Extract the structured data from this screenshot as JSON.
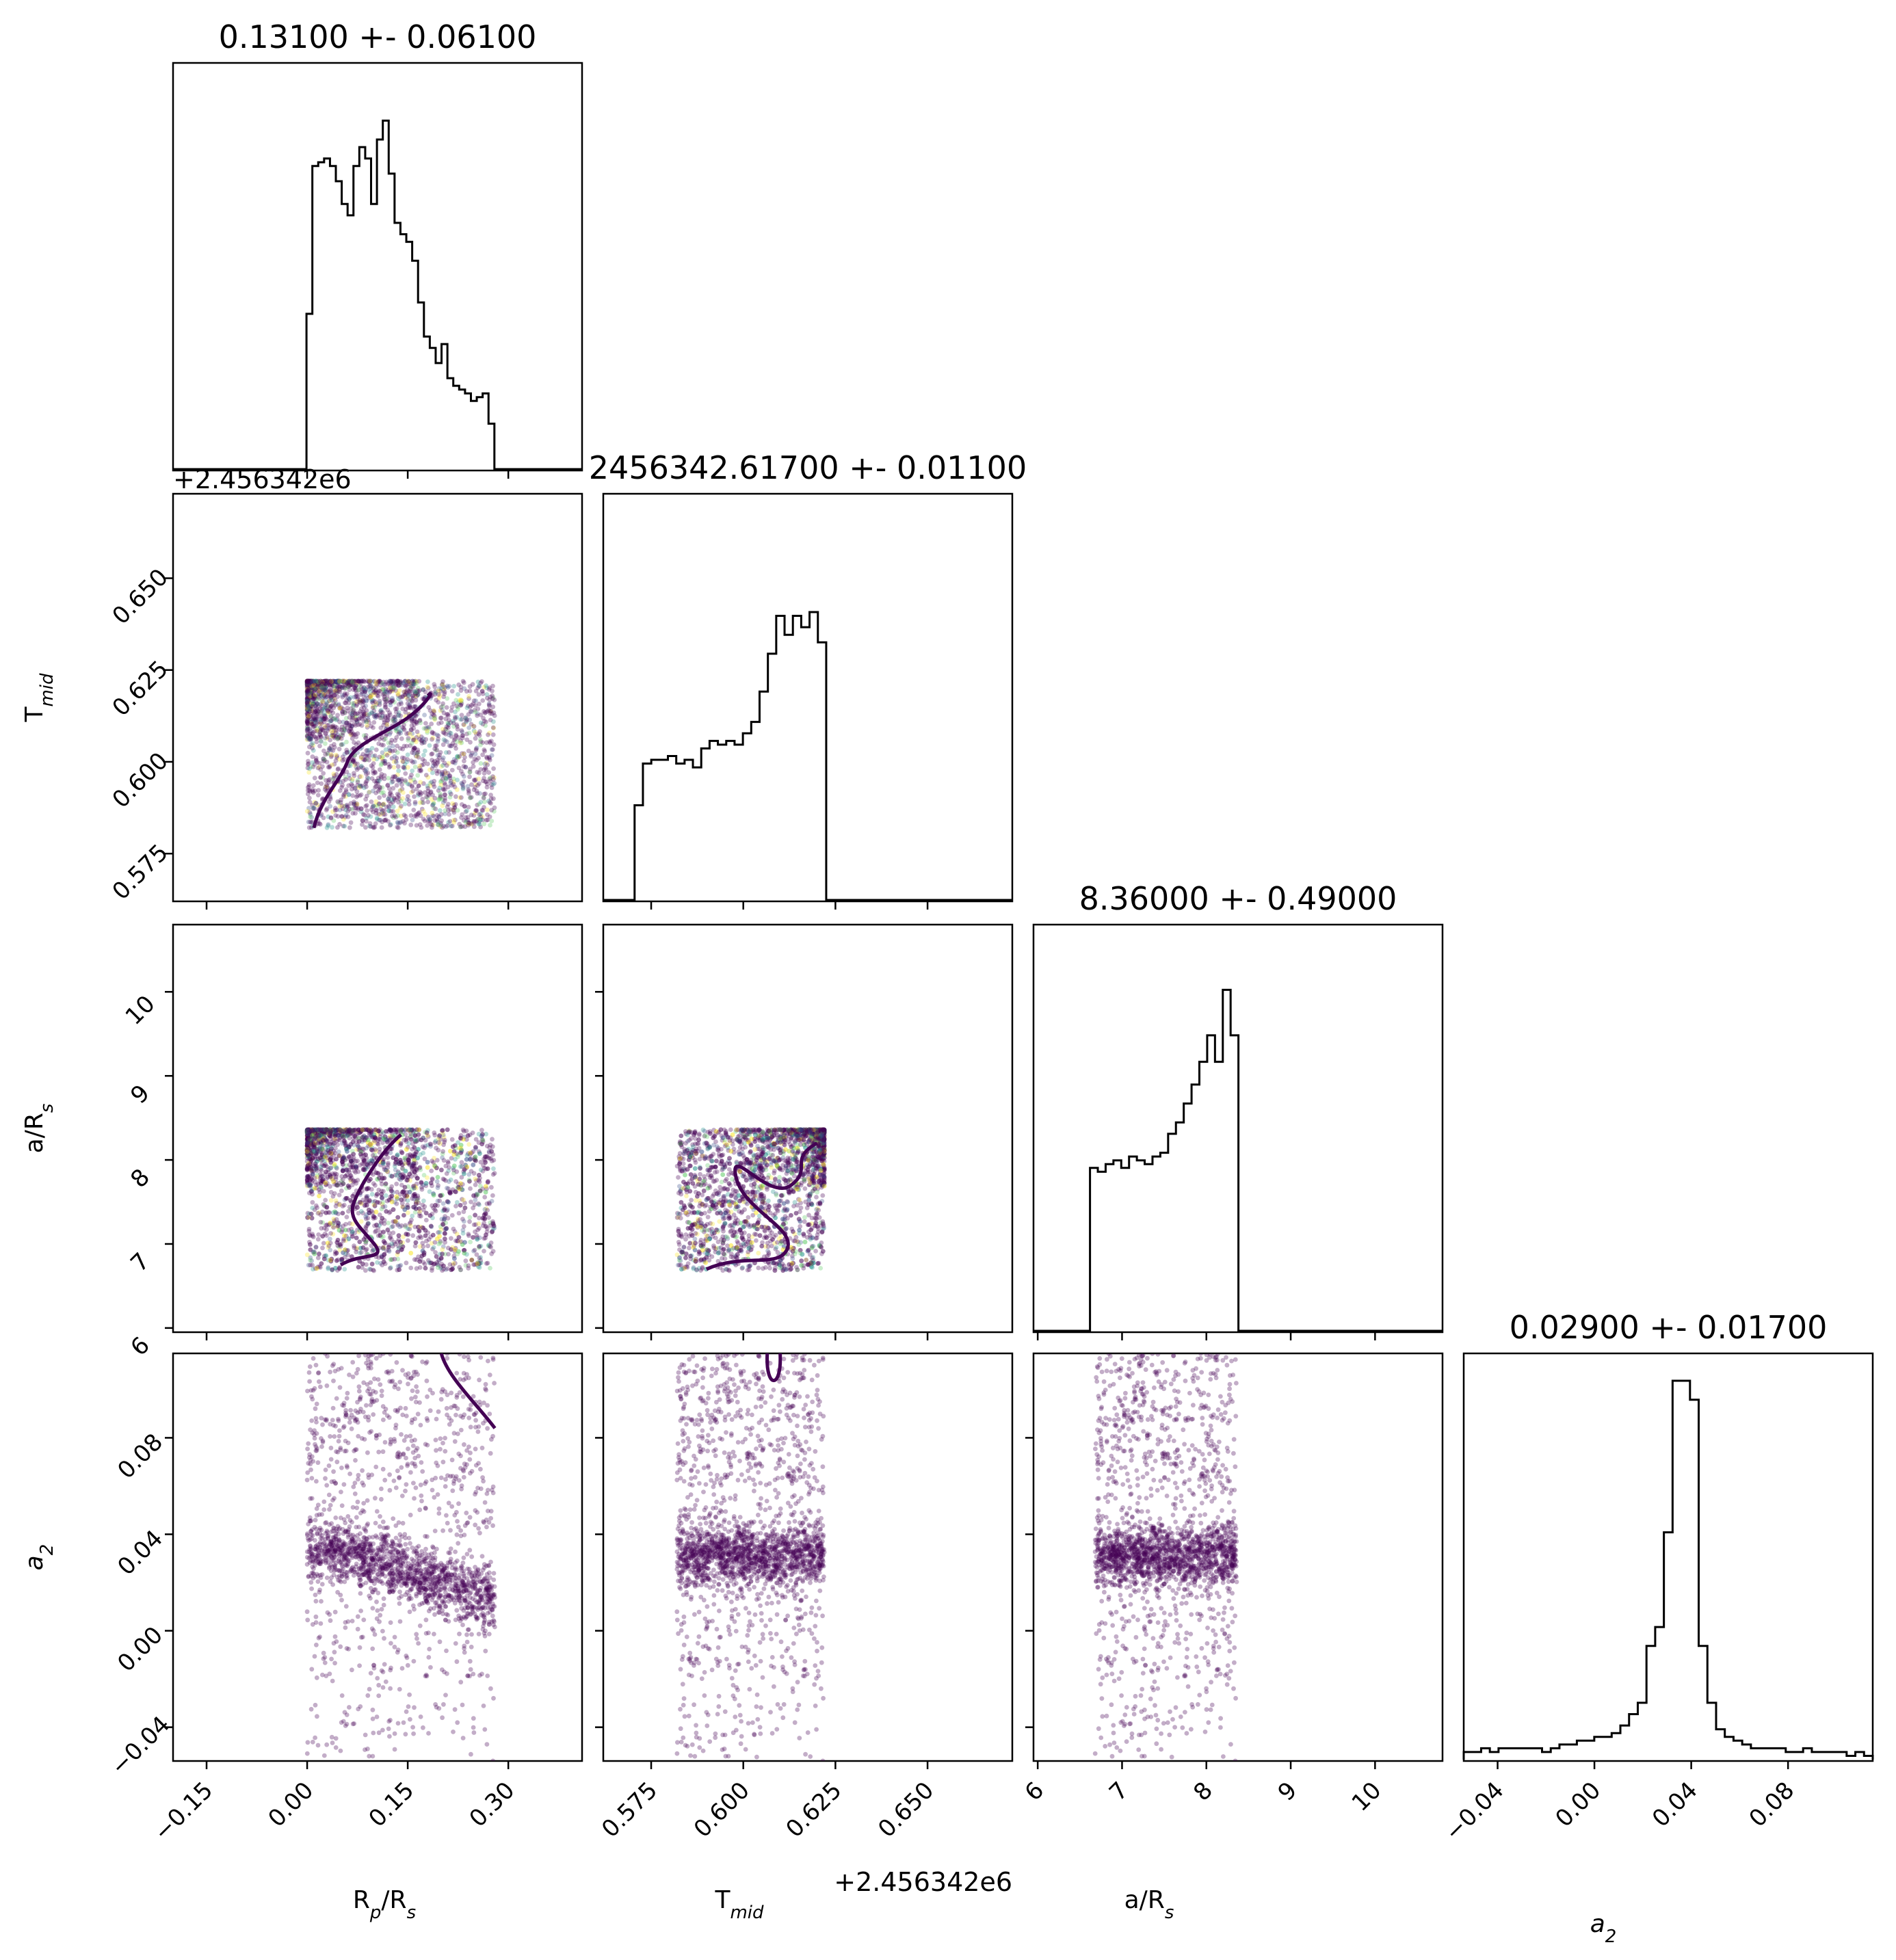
{
  "chart_data": {
    "type": "corner",
    "parameters": [
      {
        "key": "rp",
        "title": "0.13100 +- 0.06100",
        "label_main": "R",
        "label_sub": "p",
        "label_mid": "/R",
        "label_sub2": "s",
        "ticks": [
          "−0.15",
          "0.00",
          "0.15",
          "0.30"
        ],
        "range": [
          -0.2,
          0.41
        ]
      },
      {
        "key": "tmid",
        "title": "2456342.61700 +- 0.01100",
        "label_main": "T",
        "label_sub": "mid",
        "label_mid": "",
        "label_sub2": "",
        "offset": "+2.456342e6",
        "ticks": [
          "0.575",
          "0.600",
          "0.625",
          "0.650"
        ],
        "range": [
          0.562,
          0.673
        ]
      },
      {
        "key": "ars",
        "title": "8.36000 +- 0.49000",
        "label_main": "a/R",
        "label_sub": "s",
        "label_mid": "",
        "label_sub2": "",
        "ticks": [
          "6",
          "7",
          "8",
          "9",
          "10"
        ],
        "range": [
          5.95,
          10.8
        ]
      },
      {
        "key": "a2",
        "title": "0.02900 +- 0.01700",
        "label_main": "a",
        "label_sub": "2",
        "label_mid": "",
        "label_sub2": "",
        "ticks": [
          "−0.04",
          "0.00",
          "0.04",
          "0.08"
        ],
        "range": [
          -0.054,
          0.115
        ]
      }
    ],
    "histograms": {
      "rp": {
        "bins": [
          -0.001,
          0.288
        ],
        "counts": [
          0.41,
          0.8,
          0.81,
          0.82,
          0.8,
          0.76,
          0.7,
          0.67,
          0.8,
          0.85,
          0.82,
          0.7,
          0.87,
          0.92,
          0.78,
          0.65,
          0.62,
          0.6,
          0.55,
          0.44,
          0.35,
          0.32,
          0.28,
          0.33,
          0.24,
          0.22,
          0.21,
          0.2,
          0.18,
          0.19,
          0.2,
          0.12,
          0
        ]
      },
      "tmid": {
        "bins": [
          0.5705,
          0.6225
        ],
        "counts": [
          0.25,
          0.36,
          0.37,
          0.37,
          0.38,
          0.36,
          0.37,
          0.35,
          0.4,
          0.42,
          0.41,
          0.42,
          0.41,
          0.44,
          0.47,
          0.55,
          0.65,
          0.75,
          0.7,
          0.75,
          0.72,
          0.76,
          0.68
        ]
      },
      "ars": {
        "bins": [
          6.62,
          8.38
        ],
        "counts": [
          0.43,
          0.42,
          0.44,
          0.45,
          0.43,
          0.46,
          0.45,
          0.44,
          0.46,
          0.47,
          0.52,
          0.55,
          0.6,
          0.65,
          0.71,
          0.78,
          0.71,
          0.9,
          0.78
        ]
      },
      "a2": {
        "bins": [
          -0.054,
          0.115
        ],
        "counts": [
          0.02,
          0.02,
          0.03,
          0.02,
          0.03,
          0.03,
          0.03,
          0.03,
          0.03,
          0.02,
          0.03,
          0.04,
          0.04,
          0.05,
          0.05,
          0.06,
          0.06,
          0.07,
          0.09,
          0.12,
          0.15,
          0.3,
          0.35,
          0.6,
          1.0,
          1.0,
          0.95,
          0.3,
          0.15,
          0.08,
          0.06,
          0.05,
          0.04,
          0.03,
          0.03,
          0.03,
          0.03,
          0.02,
          0.02,
          0.03,
          0.02,
          0.02,
          0.02,
          0.02,
          0.01,
          0.02,
          0.01
        ]
      }
    },
    "scatter_bounds": {
      "rp": [
        0.0,
        0.28
      ],
      "tmid": [
        0.582,
        0.622
      ],
      "ars": [
        6.68,
        8.36
      ],
      "a2": [
        -0.054,
        0.115
      ]
    },
    "grid": false,
    "legend": "none"
  },
  "colors": {
    "axes": "#000000",
    "hist": "#000000",
    "contour": "#440154",
    "scatter_palette": [
      "#440154",
      "#3b528b",
      "#21918c",
      "#5ec962",
      "#fde725"
    ]
  }
}
